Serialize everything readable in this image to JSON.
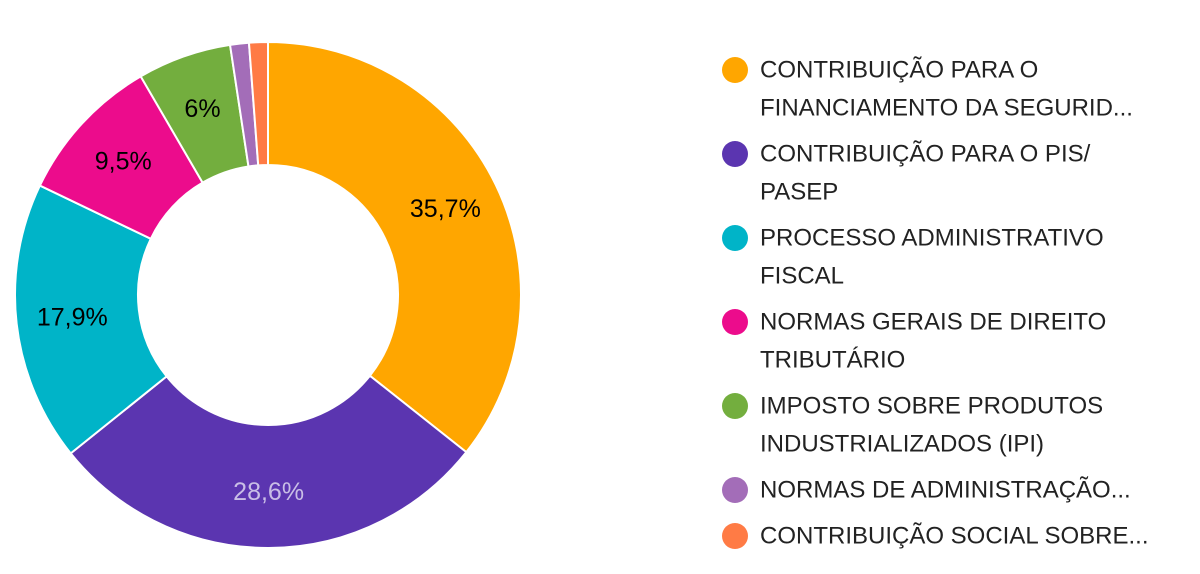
{
  "chart_data": {
    "type": "pie",
    "donut": true,
    "title": "",
    "slices": [
      {
        "label": "CONTRIBUIÇÃO PARA O FINANCIAMENTO DA SEGURID...",
        "legend_lines": [
          "CONTRIBUIÇÃO PARA O",
          "FINANCIAMENTO DA SEGURID..."
        ],
        "value": 35.7,
        "display": "35,7%",
        "color": "#FFA600",
        "label_color": "#000000"
      },
      {
        "label": "CONTRIBUIÇÃO PARA O PIS/PASEP",
        "legend_lines": [
          "CONTRIBUIÇÃO PARA O PIS/",
          "PASEP"
        ],
        "value": 28.6,
        "display": "28,6%",
        "color": "#5B35B0",
        "label_color": "#C9BEE6"
      },
      {
        "label": "PROCESSO ADMINISTRATIVO FISCAL",
        "legend_lines": [
          "PROCESSO ADMINISTRATIVO",
          "FISCAL"
        ],
        "value": 17.9,
        "display": "17,9%",
        "color": "#00B4C8",
        "label_color": "#000000"
      },
      {
        "label": "NORMAS GERAIS DE DIREITO TRIBUTÁRIO",
        "legend_lines": [
          "NORMAS GERAIS DE DIREITO",
          "TRIBUTÁRIO"
        ],
        "value": 9.5,
        "display": "9,5%",
        "color": "#EC0C8C",
        "label_color": "#000000"
      },
      {
        "label": "IMPOSTO SOBRE PRODUTOS INDUSTRIALIZADOS (IPI)",
        "legend_lines": [
          "IMPOSTO SOBRE PRODUTOS",
          "INDUSTRIALIZADOS (IPI)"
        ],
        "value": 6.0,
        "display": "6%",
        "color": "#73AE3E",
        "label_color": "#000000"
      },
      {
        "label": "NORMAS DE ADMINISTRAÇÃO...",
        "legend_lines": [
          "NORMAS DE ADMINISTRAÇÃO..."
        ],
        "value": 1.2,
        "display": "",
        "color": "#A36DB8",
        "label_color": "#000000"
      },
      {
        "label": "CONTRIBUIÇÃO SOCIAL SOBRE...",
        "legend_lines": [
          "CONTRIBUIÇÃO SOCIAL SOBRE..."
        ],
        "value": 1.2,
        "display": "",
        "color": "#FF7B45",
        "label_color": "#000000"
      }
    ],
    "legend_position": "right"
  }
}
